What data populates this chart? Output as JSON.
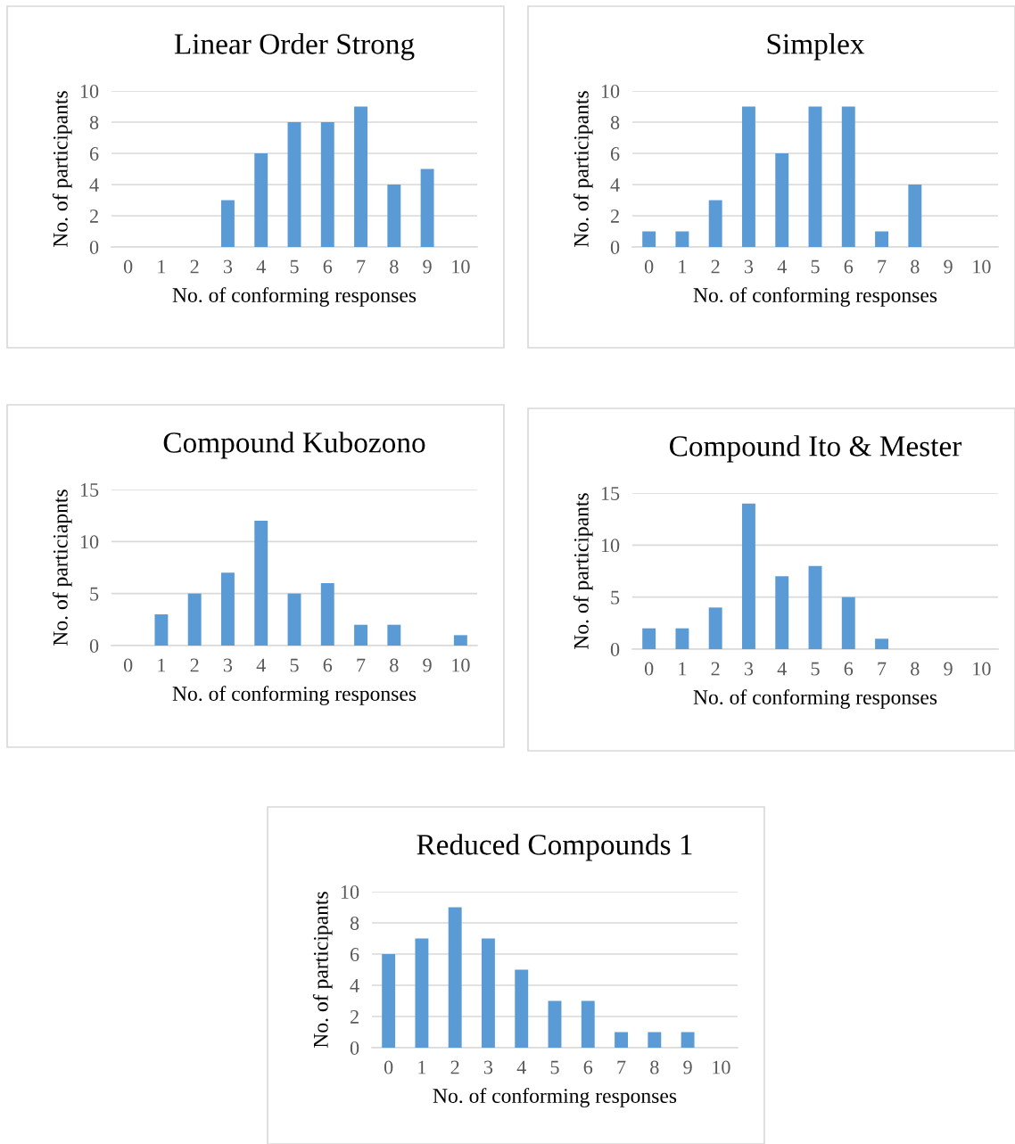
{
  "chart_data": [
    {
      "type": "bar",
      "title": "Linear Order Strong",
      "xlabel": "No. of conforming responses",
      "ylabel": "No. of participants",
      "categories": [
        "0",
        "1",
        "2",
        "3",
        "4",
        "5",
        "6",
        "7",
        "8",
        "9",
        "10"
      ],
      "values": [
        0,
        0,
        0,
        3,
        6,
        8,
        8,
        9,
        4,
        5,
        0
      ],
      "color": "#5b9bd5",
      "ylim": [
        0,
        10
      ],
      "yticks": [
        0,
        2,
        4,
        6,
        8,
        10
      ],
      "grid": "y",
      "legend": false
    },
    {
      "type": "bar",
      "title": "Simplex",
      "xlabel": "No. of conforming responses",
      "ylabel": "No. of participants",
      "categories": [
        "0",
        "1",
        "2",
        "3",
        "4",
        "5",
        "6",
        "7",
        "8",
        "9",
        "10"
      ],
      "values": [
        1,
        1,
        3,
        9,
        6,
        9,
        9,
        1,
        4,
        0,
        0
      ],
      "color": "#5b9bd5",
      "ylim": [
        0,
        10
      ],
      "yticks": [
        0,
        2,
        4,
        6,
        8,
        10
      ],
      "grid": "y",
      "legend": false
    },
    {
      "type": "bar",
      "title": "Compound Kubozono",
      "xlabel": "No. of conforming responses",
      "ylabel": "No. of particiapnts",
      "categories": [
        "0",
        "1",
        "2",
        "3",
        "4",
        "5",
        "6",
        "7",
        "8",
        "9",
        "10"
      ],
      "values": [
        0,
        3,
        5,
        7,
        12,
        5,
        6,
        2,
        2,
        0,
        1
      ],
      "color": "#5b9bd5",
      "ylim": [
        0,
        15
      ],
      "yticks": [
        0,
        5,
        10,
        15
      ],
      "grid": "y",
      "legend": false
    },
    {
      "type": "bar",
      "title": "Compound Ito & Mester",
      "xlabel": "No. of conforming responses",
      "ylabel": "No. of participants",
      "categories": [
        "0",
        "1",
        "2",
        "3",
        "4",
        "5",
        "6",
        "7",
        "8",
        "9",
        "10"
      ],
      "values": [
        2,
        2,
        4,
        14,
        7,
        8,
        5,
        1,
        0,
        0,
        0
      ],
      "color": "#5b9bd5",
      "ylim": [
        0,
        15
      ],
      "yticks": [
        0,
        5,
        10,
        15
      ],
      "grid": "y",
      "legend": false
    },
    {
      "type": "bar",
      "title": "Reduced Compounds 1",
      "xlabel": "No. of conforming responses",
      "ylabel": "No. of participants",
      "categories": [
        "0",
        "1",
        "2",
        "3",
        "4",
        "5",
        "6",
        "7",
        "8",
        "9",
        "10"
      ],
      "values": [
        6,
        7,
        9,
        7,
        5,
        3,
        3,
        1,
        1,
        1,
        0
      ],
      "color": "#5b9bd5",
      "ylim": [
        0,
        10
      ],
      "yticks": [
        0,
        2,
        4,
        6,
        8,
        10
      ],
      "grid": "y",
      "legend": false
    }
  ]
}
